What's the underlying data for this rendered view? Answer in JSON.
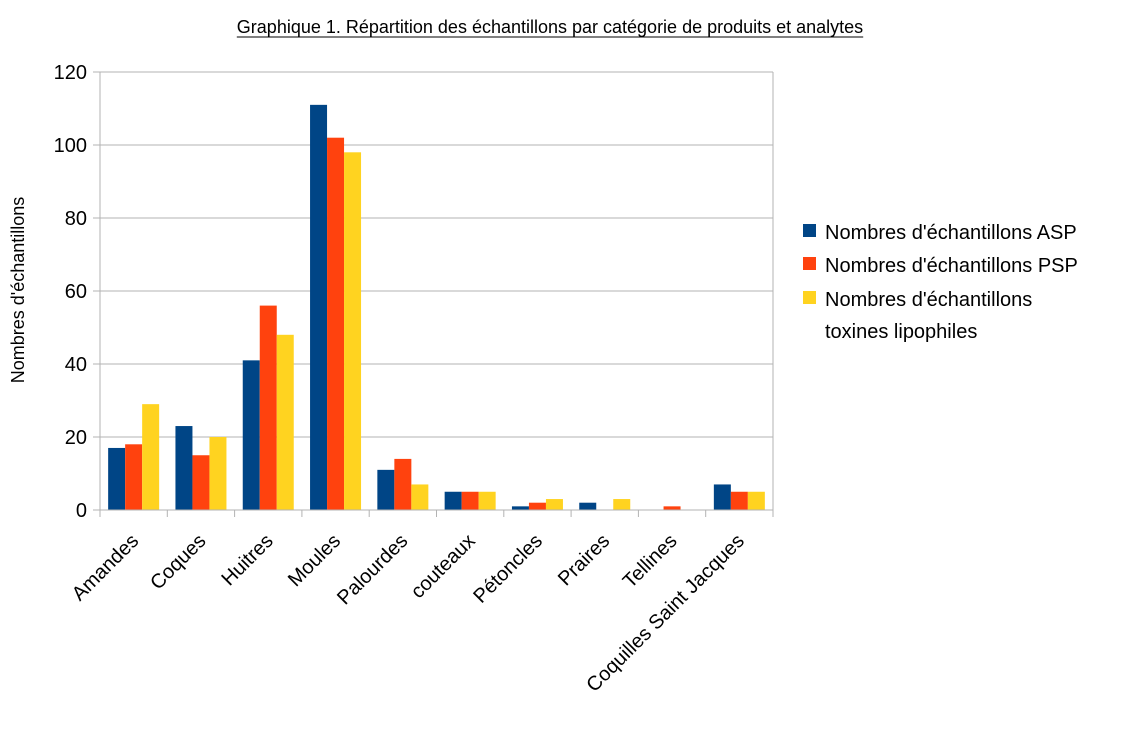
{
  "chart_data": {
    "type": "bar",
    "title": "Graphique 1. Répartition des échantillons par catégorie de produits et analytes",
    "xlabel": "",
    "ylabel": "Nombres d'échantillons",
    "ylim": [
      0,
      120
    ],
    "yticks": [
      0,
      20,
      40,
      60,
      80,
      100,
      120
    ],
    "grid": true,
    "legend_position": "right",
    "categories": [
      "Amandes",
      "Coques",
      "Huitres",
      "Moules",
      "Palourdes",
      "couteaux",
      "Pétoncles",
      "Praires",
      "Tellines",
      "Coquilles Saint Jacques"
    ],
    "series": [
      {
        "name": "Nombres d'échantillons ASP",
        "color": "#004586",
        "values": [
          17,
          23,
          41,
          111,
          11,
          5,
          1,
          2,
          0,
          7
        ]
      },
      {
        "name": "Nombres d'échantillons PSP",
        "color": "#ff420e",
        "values": [
          18,
          15,
          56,
          102,
          14,
          5,
          2,
          0,
          1,
          5
        ]
      },
      {
        "name": "Nombres d'échantillons toxines lipophiles",
        "color": "#ffd320",
        "values": [
          29,
          20,
          48,
          98,
          7,
          5,
          3,
          3,
          0,
          5
        ]
      }
    ]
  },
  "legend": {
    "items": [
      {
        "lines": [
          "Nombres d'échantillons ASP"
        ],
        "color": "#004586"
      },
      {
        "lines": [
          "Nombres d'échantillons PSP"
        ],
        "color": "#ff420e"
      },
      {
        "lines": [
          "Nombres d'échantillons",
          "toxines lipophiles"
        ],
        "color": "#ffd320"
      }
    ]
  }
}
